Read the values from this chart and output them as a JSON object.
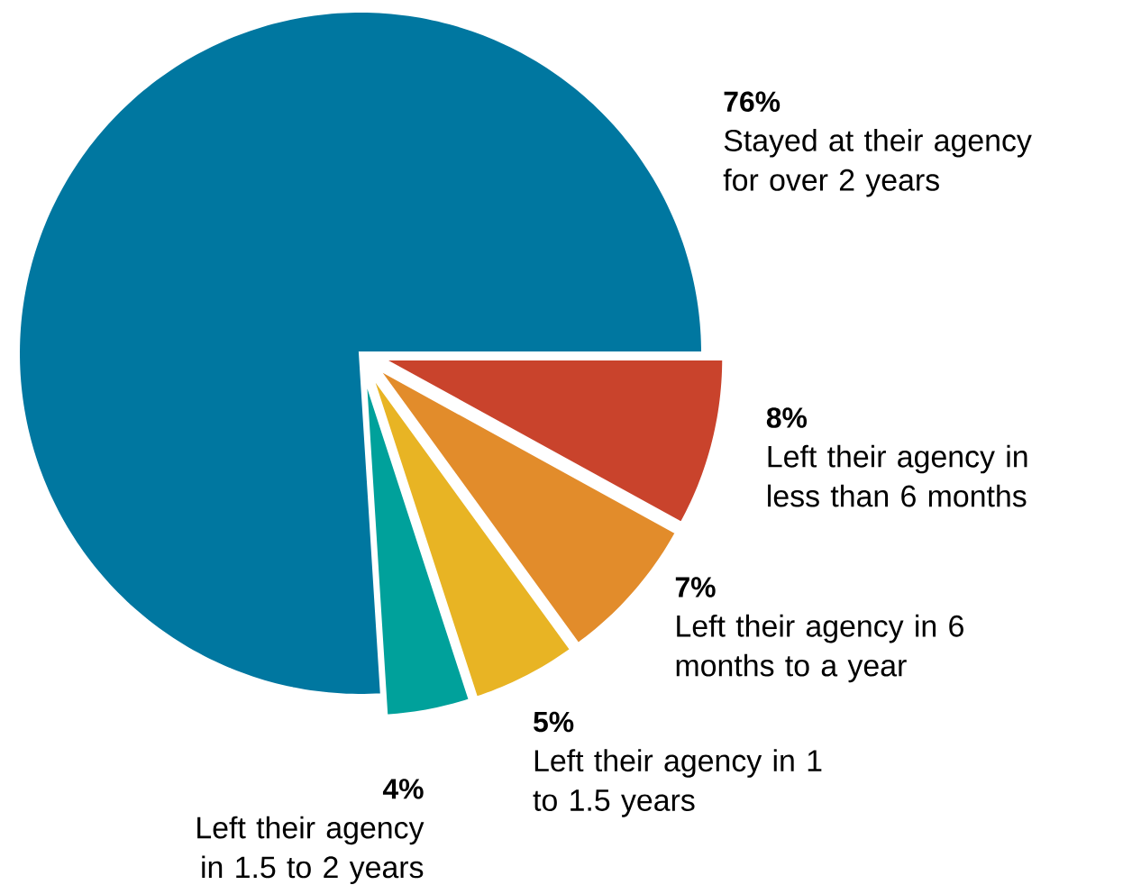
{
  "chart_data": {
    "type": "pie",
    "categories": [
      "Stayed at their agency for over 2 years",
      "Left their agency in less than 6 months",
      "Left their agency in 6 months to a year",
      "Left their agency in 1 to 1.5 years",
      "Left their agency in 1.5 to 2 years"
    ],
    "values": [
      76,
      8,
      7,
      5,
      4
    ],
    "value_labels": [
      "76%",
      "8%",
      "7%",
      "5%",
      "4%"
    ],
    "colors": [
      "#0077a0",
      "#c9432c",
      "#e28c2b",
      "#e8b424",
      "#00a19b"
    ]
  }
}
